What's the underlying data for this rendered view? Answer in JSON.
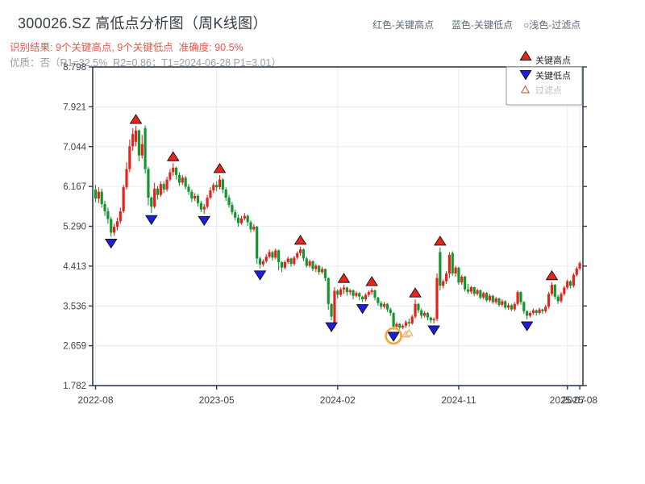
{
  "title": "300026.SZ 高低点分析图（周K线图）",
  "subtitle_result": "识别结果: 9个关键高点, 9个关键低点  准确度: 90.5%",
  "subtitle_quality": "优质：否（R1=32.5%  R2=0.86；T1=2024-06-28 P1=3.01）",
  "top_legend": {
    "high": "红色-关键高点",
    "low": "蓝色-关键低点",
    "filtered": "○浅色-过滤点"
  },
  "colors": {
    "up": "#e3241c",
    "down": "#12962e",
    "marker_high": "#e8251c",
    "marker_low": "#1d1fd8",
    "marker_edge": "#101010",
    "filtered": "#e2b45a",
    "filtered_fill": "#fdf6e8",
    "highlight": "#f5a63b",
    "axis": "#2e3d4f",
    "grid": "#ececf0",
    "tick_label": "#3a4450",
    "legend_text": "#23272d",
    "legend_text_muted": "#b9bfc5",
    "legend_border": "#8e99a4"
  },
  "chart_data": {
    "type": "candlestick",
    "symbol": "300026.SZ",
    "period": "weekly",
    "title": "300026.SZ 高低点分析图（周K线图）",
    "grid": true,
    "legend_position": "top-right",
    "ylim": [
      1.782,
      8.798
    ],
    "y_ticks": [
      "8.798",
      "7.921",
      "7.044",
      "6.167",
      "5.290",
      "4.413",
      "3.536",
      "2.659",
      "1.782"
    ],
    "x_ticks": [
      {
        "label": "2022-08",
        "index": 0
      },
      {
        "label": "2023-05",
        "index": 39
      },
      {
        "label": "2024-02",
        "index": 78
      },
      {
        "label": "2024-11",
        "index": 117
      },
      {
        "label": "2025-07",
        "index": 152
      },
      {
        "label": "2025-08",
        "index": 156
      }
    ],
    "legend": [
      {
        "label": "关键高点",
        "marker": "red-triangle-up"
      },
      {
        "label": "关键低点",
        "marker": "blue-triangle-down"
      },
      {
        "label": "过滤点",
        "marker": "light-triangle-outline"
      }
    ],
    "candles": [
      [
        6.1,
        6.2,
        5.82,
        5.9
      ],
      [
        5.9,
        6.15,
        5.8,
        6.05
      ],
      [
        6.05,
        6.12,
        5.7,
        5.78
      ],
      [
        5.78,
        5.85,
        5.52,
        5.62
      ],
      [
        5.62,
        5.7,
        5.35,
        5.45
      ],
      [
        5.45,
        5.5,
        5.06,
        5.15
      ],
      [
        5.15,
        5.35,
        5.08,
        5.28
      ],
      [
        5.28,
        5.48,
        5.2,
        5.4
      ],
      [
        5.4,
        5.7,
        5.35,
        5.62
      ],
      [
        5.62,
        6.2,
        5.58,
        6.15
      ],
      [
        6.15,
        6.7,
        6.1,
        6.55
      ],
      [
        6.55,
        7.2,
        6.48,
        7.05
      ],
      [
        7.05,
        7.45,
        6.95,
        7.32
      ],
      [
        7.15,
        7.5,
        7.05,
        7.4
      ],
      [
        7.4,
        7.42,
        6.72,
        6.85
      ],
      [
        6.85,
        7.3,
        6.78,
        7.1
      ],
      [
        7.45,
        7.51,
        6.45,
        6.55
      ],
      [
        6.55,
        6.6,
        5.75,
        5.92
      ],
      [
        5.92,
        5.95,
        5.58,
        5.72
      ],
      [
        5.72,
        6.25,
        5.68,
        6.12
      ],
      [
        6.12,
        6.18,
        5.88,
        5.98
      ],
      [
        5.98,
        6.28,
        5.94,
        6.22
      ],
      [
        6.22,
        6.28,
        6.02,
        6.1
      ],
      [
        6.1,
        6.38,
        6.05,
        6.32
      ],
      [
        6.32,
        6.55,
        6.28,
        6.48
      ],
      [
        6.48,
        6.68,
        6.4,
        6.58
      ],
      [
        6.58,
        6.6,
        6.32,
        6.42
      ],
      [
        6.42,
        6.48,
        6.18,
        6.25
      ],
      [
        6.25,
        6.42,
        6.2,
        6.36
      ],
      [
        6.36,
        6.4,
        6.1,
        6.16
      ],
      [
        6.16,
        6.22,
        5.98,
        6.05
      ],
      [
        6.05,
        6.1,
        5.82,
        5.9
      ],
      [
        5.9,
        6.02,
        5.84,
        5.96
      ],
      [
        5.96,
        6.0,
        5.72,
        5.8
      ],
      [
        5.8,
        5.85,
        5.6,
        5.66
      ],
      [
        5.66,
        5.78,
        5.56,
        5.72
      ],
      [
        5.72,
        5.98,
        5.68,
        5.92
      ],
      [
        5.92,
        6.15,
        5.88,
        6.08
      ],
      [
        6.08,
        6.25,
        6.02,
        6.2
      ],
      [
        6.2,
        6.28,
        6.06,
        6.15
      ],
      [
        6.15,
        6.42,
        6.1,
        6.32
      ],
      [
        6.32,
        6.35,
        6.02,
        6.1
      ],
      [
        6.1,
        6.15,
        5.85,
        5.92
      ],
      [
        5.92,
        5.98,
        5.7,
        5.76
      ],
      [
        5.76,
        5.82,
        5.54,
        5.6
      ],
      [
        5.6,
        5.66,
        5.42,
        5.48
      ],
      [
        5.48,
        5.55,
        5.28,
        5.36
      ],
      [
        5.36,
        5.52,
        5.32,
        5.46
      ],
      [
        5.46,
        5.58,
        5.42,
        5.52
      ],
      [
        5.52,
        5.55,
        5.3,
        5.38
      ],
      [
        5.38,
        5.42,
        5.15,
        5.22
      ],
      [
        5.22,
        5.34,
        5.18,
        5.28
      ],
      [
        5.28,
        5.3,
        4.46,
        4.58
      ],
      [
        4.58,
        4.62,
        4.36,
        4.45
      ],
      [
        4.45,
        4.56,
        4.4,
        4.52
      ],
      [
        4.52,
        4.68,
        4.48,
        4.62
      ],
      [
        4.62,
        4.78,
        4.58,
        4.72
      ],
      [
        4.72,
        4.75,
        4.54,
        4.6
      ],
      [
        4.6,
        4.8,
        4.56,
        4.76
      ],
      [
        4.76,
        4.78,
        4.32,
        4.5
      ],
      [
        4.5,
        4.52,
        4.28,
        4.38
      ],
      [
        4.38,
        4.54,
        4.34,
        4.5
      ],
      [
        4.5,
        4.62,
        4.46,
        4.58
      ],
      [
        4.58,
        4.6,
        4.4,
        4.46
      ],
      [
        4.46,
        4.64,
        4.42,
        4.6
      ],
      [
        4.6,
        4.74,
        4.56,
        4.7
      ],
      [
        4.7,
        4.84,
        4.64,
        4.78
      ],
      [
        4.78,
        4.8,
        4.52,
        4.58
      ],
      [
        4.58,
        4.62,
        4.38,
        4.42
      ],
      [
        4.42,
        4.56,
        4.38,
        4.52
      ],
      [
        4.52,
        4.54,
        4.3,
        4.35
      ],
      [
        4.35,
        4.46,
        4.28,
        4.42
      ],
      [
        4.42,
        4.44,
        4.22,
        4.28
      ],
      [
        4.28,
        4.4,
        4.24,
        4.35
      ],
      [
        4.35,
        4.36,
        4.08,
        4.15
      ],
      [
        4.15,
        4.16,
        3.45,
        3.58
      ],
      [
        3.58,
        3.6,
        3.22,
        3.3
      ],
      [
        3.1,
        3.95,
        3.05,
        3.87
      ],
      [
        3.87,
        3.9,
        3.7,
        3.78
      ],
      [
        3.78,
        3.94,
        3.74,
        3.9
      ],
      [
        3.9,
        4.0,
        3.8,
        3.94
      ],
      [
        3.94,
        3.96,
        3.76,
        3.84
      ],
      [
        3.84,
        3.92,
        3.78,
        3.88
      ],
      [
        3.88,
        3.9,
        3.68,
        3.76
      ],
      [
        3.76,
        3.86,
        3.72,
        3.82
      ],
      [
        3.82,
        3.84,
        3.66,
        3.74
      ],
      [
        3.74,
        3.76,
        3.62,
        3.68
      ],
      [
        3.68,
        3.82,
        3.64,
        3.78
      ],
      [
        3.78,
        3.88,
        3.74,
        3.84
      ],
      [
        3.84,
        3.93,
        3.78,
        3.88
      ],
      [
        3.88,
        3.9,
        3.66,
        3.72
      ],
      [
        3.72,
        3.74,
        3.54,
        3.6
      ],
      [
        3.6,
        3.64,
        3.46,
        3.52
      ],
      [
        3.52,
        3.62,
        3.48,
        3.58
      ],
      [
        3.58,
        3.6,
        3.4,
        3.46
      ],
      [
        3.46,
        3.5,
        3.32,
        3.38
      ],
      [
        3.38,
        3.4,
        3.01,
        3.08
      ],
      [
        3.08,
        3.18,
        3.02,
        3.14
      ],
      [
        3.14,
        3.16,
        3.02,
        3.06
      ],
      [
        3.06,
        3.14,
        3.02,
        3.1
      ],
      [
        3.1,
        3.22,
        3.05,
        3.18
      ],
      [
        3.18,
        3.26,
        3.08,
        3.15
      ],
      [
        3.15,
        3.34,
        3.12,
        3.3
      ],
      [
        3.3,
        3.68,
        3.26,
        3.58
      ],
      [
        3.58,
        3.6,
        3.38,
        3.44
      ],
      [
        3.44,
        3.48,
        3.26,
        3.32
      ],
      [
        3.32,
        3.42,
        3.28,
        3.38
      ],
      [
        3.38,
        3.4,
        3.22,
        3.28
      ],
      [
        3.28,
        3.3,
        3.16,
        3.22
      ],
      [
        3.22,
        3.28,
        3.15,
        3.25
      ],
      [
        3.25,
        4.25,
        3.2,
        4.15
      ],
      [
        4.72,
        4.82,
        3.88,
        3.98
      ],
      [
        3.98,
        4.12,
        3.92,
        4.08
      ],
      [
        4.08,
        4.3,
        4.02,
        4.25
      ],
      [
        4.25,
        4.72,
        4.15,
        4.66
      ],
      [
        4.7,
        4.74,
        4.2,
        4.25
      ],
      [
        4.25,
        4.42,
        4.18,
        4.38
      ],
      [
        4.38,
        4.4,
        4.0,
        4.05
      ],
      [
        4.05,
        4.22,
        4.0,
        4.18
      ],
      [
        4.18,
        4.2,
        3.85,
        3.9
      ],
      [
        3.9,
        4.02,
        3.8,
        3.85
      ],
      [
        3.85,
        3.98,
        3.8,
        3.95
      ],
      [
        3.95,
        3.96,
        3.75,
        3.8
      ],
      [
        3.8,
        3.92,
        3.76,
        3.88
      ],
      [
        3.88,
        3.9,
        3.68,
        3.72
      ],
      [
        3.72,
        3.85,
        3.68,
        3.82
      ],
      [
        3.82,
        3.84,
        3.62,
        3.66
      ],
      [
        3.66,
        3.8,
        3.62,
        3.76
      ],
      [
        3.76,
        3.78,
        3.58,
        3.62
      ],
      [
        3.62,
        3.74,
        3.58,
        3.7
      ],
      [
        3.7,
        3.72,
        3.52,
        3.56
      ],
      [
        3.56,
        3.68,
        3.52,
        3.64
      ],
      [
        3.64,
        3.66,
        3.46,
        3.5
      ],
      [
        3.5,
        3.6,
        3.45,
        3.55
      ],
      [
        3.55,
        3.58,
        3.42,
        3.46
      ],
      [
        3.46,
        3.62,
        3.42,
        3.58
      ],
      [
        3.58,
        3.88,
        3.54,
        3.84
      ],
      [
        3.84,
        3.86,
        3.56,
        3.62
      ],
      [
        3.62,
        3.64,
        3.36,
        3.42
      ],
      [
        3.42,
        3.44,
        3.24,
        3.32
      ],
      [
        3.32,
        3.42,
        3.28,
        3.38
      ],
      [
        3.38,
        3.48,
        3.34,
        3.44
      ],
      [
        3.44,
        3.46,
        3.32,
        3.38
      ],
      [
        3.38,
        3.5,
        3.34,
        3.46
      ],
      [
        3.46,
        3.48,
        3.36,
        3.42
      ],
      [
        3.42,
        3.56,
        3.38,
        3.52
      ],
      [
        3.52,
        3.85,
        3.48,
        3.8
      ],
      [
        3.8,
        4.06,
        3.76,
        4.0
      ],
      [
        4.0,
        4.02,
        3.68,
        3.74
      ],
      [
        3.74,
        3.78,
        3.58,
        3.64
      ],
      [
        3.64,
        3.84,
        3.6,
        3.8
      ],
      [
        3.8,
        3.98,
        3.76,
        3.94
      ],
      [
        3.94,
        4.12,
        3.9,
        4.08
      ],
      [
        4.08,
        4.1,
        3.92,
        3.98
      ],
      [
        3.98,
        4.26,
        3.94,
        4.22
      ],
      [
        4.22,
        4.4,
        4.18,
        4.36
      ],
      [
        4.36,
        4.52,
        4.32,
        4.48
      ]
    ],
    "key_high_indices": [
      13,
      25,
      40,
      66,
      80,
      89,
      103,
      111,
      147
    ],
    "key_low_indices": [
      5,
      18,
      35,
      53,
      76,
      86,
      96,
      109,
      139
    ],
    "filtered_point_indices": [
      100,
      101
    ],
    "highlight_circle": {
      "index": 96,
      "price": 3.01,
      "date": "2024-06-28"
    },
    "key_high_count": 9,
    "key_low_count": 9,
    "accuracy": "90.5%"
  }
}
